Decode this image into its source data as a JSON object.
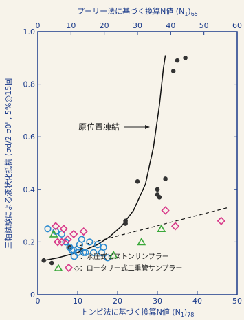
{
  "chart_data": {
    "type": "scatter",
    "top_axis": {
      "label": "プーリー法に基づく換算N値 (N",
      "label_sub": "1",
      "label_tail": ")",
      "label_sub2": "65",
      "ticks": [
        "0",
        "10",
        "20",
        "30",
        "40",
        "50",
        "60"
      ],
      "range": [
        0,
        60
      ]
    },
    "x_axis": {
      "label": "トンビ法に基づく換算N値 (N",
      "label_sub": "1",
      "label_tail": ")",
      "label_sub2": "78",
      "ticks": [
        "0",
        "10",
        "20",
        "30",
        "40",
        "50"
      ],
      "range": [
        0,
        50
      ]
    },
    "y_axis": {
      "label": "三軸試験による液状化抵抗 (σd/2 σ0' , 5%@15回",
      "ticks": [
        "0",
        "0.2",
        "0.4",
        "0.6",
        "0.8",
        "1.0"
      ],
      "range": [
        0,
        1.0
      ]
    },
    "annotation": "原位置凍結",
    "legend": [
      {
        "marker": "○",
        "label": "：水圧式ピストンサンプラー",
        "color": "#2a8ad0"
      },
      {
        "marker": "△",
        "label": "◇：ロータリー式二重管サンプラー",
        "color": "#d83a8a",
        "tri_color": "#3aa83a"
      }
    ],
    "series": [
      {
        "name": "原位置凍結",
        "marker": "filled-circle",
        "color": "#333333",
        "points": [
          [
            1.5,
            0.13
          ],
          [
            3.5,
            0.12
          ],
          [
            8,
            0.18
          ],
          [
            11,
            0.17
          ],
          [
            22,
            0.27
          ],
          [
            22,
            0.28
          ],
          [
            25,
            0.43
          ],
          [
            30,
            0.38
          ],
          [
            30.5,
            0.37
          ],
          [
            30,
            0.4
          ],
          [
            32,
            0.44
          ],
          [
            34,
            0.85
          ],
          [
            35,
            0.89
          ],
          [
            37,
            0.9
          ]
        ]
      },
      {
        "name": "水圧式ピストンサンプラー",
        "marker": "circle",
        "color": "#2a8ad0",
        "points": [
          [
            2.5,
            0.25
          ],
          [
            4.5,
            0.24
          ],
          [
            6,
            0.23
          ],
          [
            7,
            0.2
          ],
          [
            8,
            0.18
          ],
          [
            8.5,
            0.17
          ],
          [
            9,
            0.17
          ],
          [
            10,
            0.16
          ],
          [
            10.5,
            0.19
          ],
          [
            11,
            0.21
          ],
          [
            11.5,
            0.16
          ],
          [
            12,
            0.16
          ],
          [
            13,
            0.2
          ],
          [
            14,
            0.16
          ],
          [
            15,
            0.19
          ],
          [
            16,
            0.16
          ],
          [
            16.5,
            0.18
          ],
          [
            17.5,
            0.14
          ]
        ]
      },
      {
        "name": "ロータリー式二重管サンプラー (△)",
        "marker": "triangle",
        "color": "#3aa83a",
        "points": [
          [
            4,
            0.23
          ],
          [
            19,
            0.15
          ],
          [
            26,
            0.2
          ],
          [
            31,
            0.25
          ]
        ]
      },
      {
        "name": "ロータリー式二重管サンプラー (◇)",
        "marker": "diamond",
        "color": "#d83a8a",
        "points": [
          [
            4.5,
            0.26
          ],
          [
            5,
            0.2
          ],
          [
            6,
            0.2
          ],
          [
            6.5,
            0.25
          ],
          [
            7.5,
            0.21
          ],
          [
            9,
            0.23
          ],
          [
            11.5,
            0.24
          ],
          [
            32,
            0.32
          ],
          [
            34.5,
            0.26
          ],
          [
            46,
            0.28
          ]
        ]
      }
    ],
    "fit_curve_solid": [
      [
        1.5,
        0.13
      ],
      [
        5,
        0.14
      ],
      [
        10,
        0.16
      ],
      [
        15,
        0.19
      ],
      [
        18,
        0.22
      ],
      [
        21,
        0.26
      ],
      [
        24,
        0.32
      ],
      [
        27,
        0.42
      ],
      [
        29,
        0.56
      ],
      [
        30.5,
        0.72
      ],
      [
        31.5,
        0.86
      ],
      [
        32,
        0.91
      ]
    ],
    "fit_line_dashed": [
      [
        9,
        0.18
      ],
      [
        47.5,
        0.33
      ]
    ]
  }
}
